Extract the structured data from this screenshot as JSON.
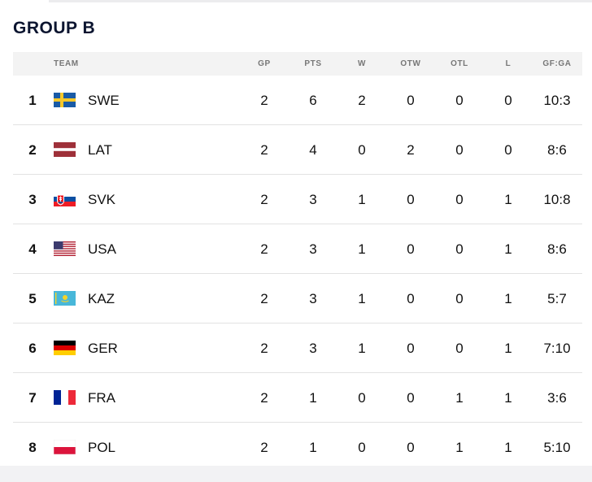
{
  "group_title": "GROUP B",
  "columns": {
    "team": "TEAM",
    "gp": "GP",
    "pts": "PTS",
    "w": "W",
    "otw": "OTW",
    "otl": "OTL",
    "l": "L",
    "gfga": "GF:GA"
  },
  "rows": [
    {
      "rank": "1",
      "team": "SWE",
      "flag": "sweden-flag-icon",
      "gp": "2",
      "pts": "6",
      "w": "2",
      "otw": "0",
      "otl": "0",
      "l": "0",
      "gfga": "10:3"
    },
    {
      "rank": "2",
      "team": "LAT",
      "flag": "latvia-flag-icon",
      "gp": "2",
      "pts": "4",
      "w": "0",
      "otw": "2",
      "otl": "0",
      "l": "0",
      "gfga": "8:6"
    },
    {
      "rank": "3",
      "team": "SVK",
      "flag": "slovakia-flag-icon",
      "gp": "2",
      "pts": "3",
      "w": "1",
      "otw": "0",
      "otl": "0",
      "l": "1",
      "gfga": "10:8"
    },
    {
      "rank": "4",
      "team": "USA",
      "flag": "usa-flag-icon",
      "gp": "2",
      "pts": "3",
      "w": "1",
      "otw": "0",
      "otl": "0",
      "l": "1",
      "gfga": "8:6"
    },
    {
      "rank": "5",
      "team": "KAZ",
      "flag": "kazakhstan-flag-icon",
      "gp": "2",
      "pts": "3",
      "w": "1",
      "otw": "0",
      "otl": "0",
      "l": "1",
      "gfga": "5:7"
    },
    {
      "rank": "6",
      "team": "GER",
      "flag": "germany-flag-icon",
      "gp": "2",
      "pts": "3",
      "w": "1",
      "otw": "0",
      "otl": "0",
      "l": "1",
      "gfga": "7:10"
    },
    {
      "rank": "7",
      "team": "FRA",
      "flag": "france-flag-icon",
      "gp": "2",
      "pts": "1",
      "w": "0",
      "otw": "0",
      "otl": "1",
      "l": "1",
      "gfga": "3:6"
    },
    {
      "rank": "8",
      "team": "POL",
      "flag": "poland-flag-icon",
      "gp": "2",
      "pts": "1",
      "w": "0",
      "otw": "0",
      "otl": "1",
      "l": "1",
      "gfga": "5:10"
    }
  ],
  "colors": {
    "title": "#0c1530",
    "header_bg": "#f3f3f3",
    "row_divider": "#e2e2e2"
  }
}
